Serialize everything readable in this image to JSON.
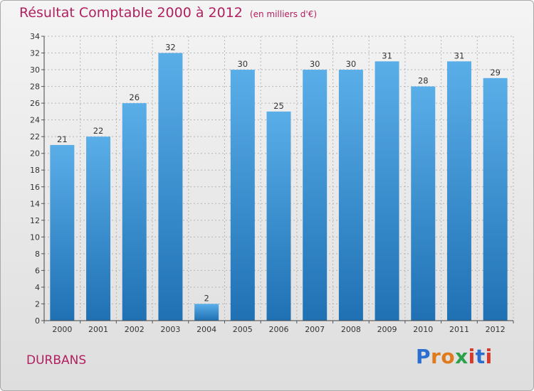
{
  "chart_data": {
    "type": "bar",
    "title": "Résultat Comptable 2000 à 2012",
    "unit_note": "(en milliers d'€)",
    "categories": [
      "2000",
      "2001",
      "2002",
      "2003",
      "2004",
      "2005",
      "2006",
      "2007",
      "2008",
      "2009",
      "2010",
      "2011",
      "2012"
    ],
    "values": [
      21,
      22,
      26,
      32,
      2,
      30,
      25,
      30,
      30,
      31,
      28,
      31,
      29
    ],
    "ylim": [
      0,
      34
    ],
    "yticks": [
      0,
      2,
      4,
      6,
      8,
      10,
      12,
      14,
      16,
      18,
      20,
      22,
      24,
      26,
      28,
      30,
      32,
      34
    ],
    "xlabel": "",
    "ylabel": "",
    "grid": true,
    "colors": {
      "bar_top": "#5aaee8",
      "bar_bottom": "#1f71b4",
      "title": "#b1205f",
      "grid": "#b5b5b5"
    }
  },
  "commune": "DURBANS",
  "brand": {
    "letters": [
      "P",
      "r",
      "o",
      "x",
      "i",
      "t",
      "i"
    ],
    "colors": [
      "#2a6fd0",
      "#e07a1a",
      "#e07a1a",
      "#2aa14a",
      "#d63a2a",
      "#2a6fd0",
      "#d63a2a"
    ]
  }
}
